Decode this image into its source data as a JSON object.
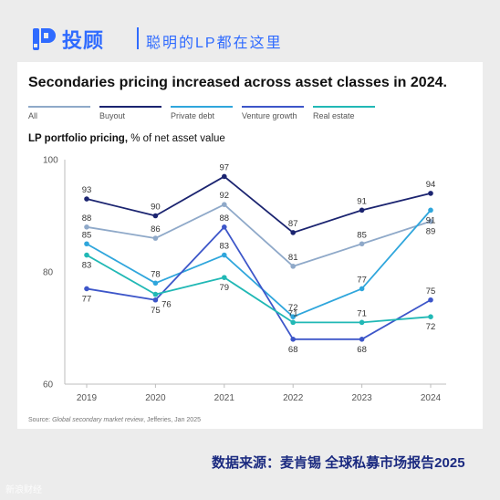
{
  "brand": {
    "name": "投顾",
    "slogan": "聪明的LP都在这里"
  },
  "footer_text": "数据来源：麦肯锡 全球私募市场报告2025",
  "watermark_text": "新浪财经",
  "colors": {
    "All": "#8fa9c9",
    "Buyout": "#1b2470",
    "Private debt": "#2fa6dc",
    "Venture growth": "#3d56c9",
    "Real estate": "#21b8b5",
    "brand": "#2f6bff"
  },
  "chart_data": {
    "type": "line",
    "title": "Secondaries pricing increased across asset classes in 2024.",
    "subtitle_bold": "LP portfolio pricing,",
    "subtitle_rest": " % of net asset value",
    "source_prefix": "Source: ",
    "source_italic": "Global secondary market review",
    "source_suffix": ", Jefferies, Jan 2025",
    "x": [
      "2019",
      "2020",
      "2021",
      "2022",
      "2023",
      "2024"
    ],
    "ylim": [
      60,
      100
    ],
    "yticks": [
      "60",
      "80",
      "100"
    ],
    "grid": false,
    "legend_position": "top",
    "series": [
      {
        "name": "All",
        "values": [
          88,
          86,
          92,
          81,
          85,
          89
        ]
      },
      {
        "name": "Buyout",
        "values": [
          93,
          90,
          97,
          87,
          91,
          94
        ]
      },
      {
        "name": "Private debt",
        "values": [
          85,
          78,
          83,
          72,
          77,
          91
        ]
      },
      {
        "name": "Venture growth",
        "values": [
          77,
          75,
          88,
          68,
          68,
          75
        ]
      },
      {
        "name": "Real estate",
        "values": [
          83,
          76,
          79,
          71,
          71,
          72
        ]
      }
    ]
  }
}
